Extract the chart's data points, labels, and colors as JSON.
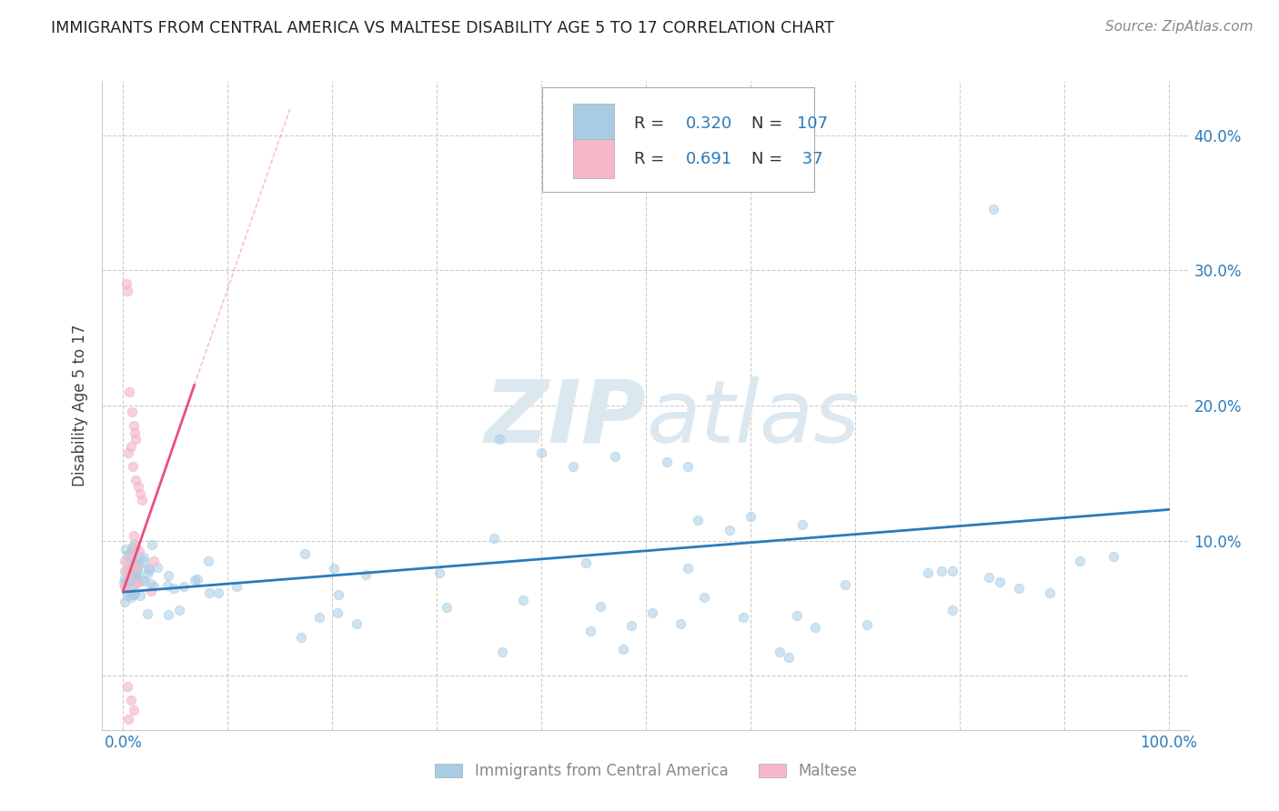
{
  "title": "IMMIGRANTS FROM CENTRAL AMERICA VS MALTESE DISABILITY AGE 5 TO 17 CORRELATION CHART",
  "source": "Source: ZipAtlas.com",
  "ylabel": "Disability Age 5 to 17",
  "xlim": [
    -0.02,
    1.02
  ],
  "ylim": [
    -0.04,
    0.44
  ],
  "x_ticks": [
    0.0,
    0.1,
    0.2,
    0.3,
    0.4,
    0.5,
    0.6,
    0.7,
    0.8,
    0.9,
    1.0
  ],
  "y_ticks": [
    0.0,
    0.1,
    0.2,
    0.3,
    0.4
  ],
  "blue_R": 0.32,
  "blue_N": 107,
  "pink_R": 0.691,
  "pink_N": 37,
  "blue_color": "#a8cce4",
  "pink_color": "#f4b8c8",
  "blue_line_color": "#2b7bba",
  "pink_line_color": "#e8507a",
  "text_color_blue": "#2b7bba",
  "grid_color": "#cccccc",
  "watermark_color": "#dce8f0",
  "tick_color_blue": "#2b7bba",
  "tick_color_x": "#888888",
  "bottom_legend_text_color": "#888888"
}
